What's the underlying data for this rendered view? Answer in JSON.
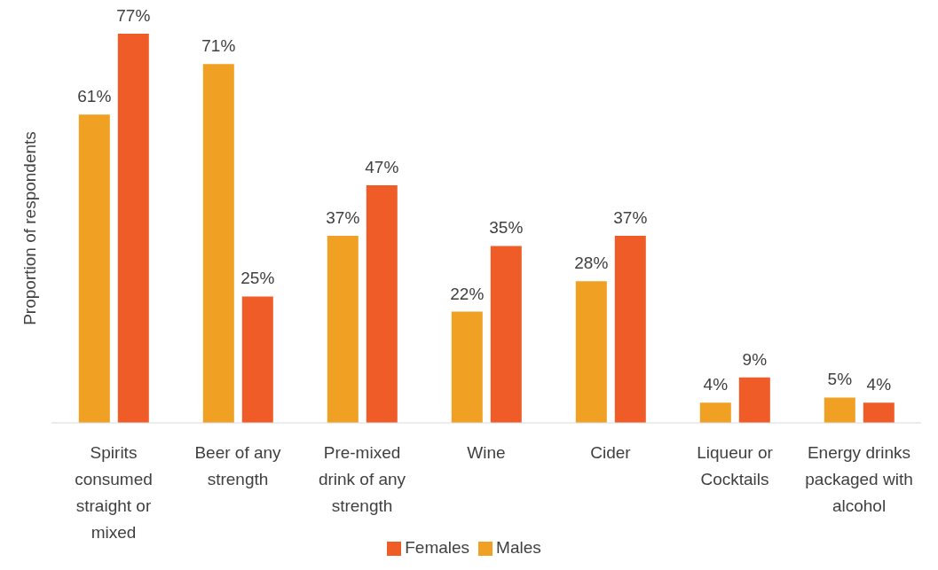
{
  "chart_data": {
    "type": "bar",
    "ylabel": "Proportion of respondents",
    "categories": [
      "Spirits consumed straight or mixed",
      "Beer of any strength",
      "Pre-mixed drink of any strength",
      "Wine",
      "Cider",
      "Liqueur or Cocktails",
      "Energy drinks packaged with alcohol"
    ],
    "series": [
      {
        "name": "Males",
        "color": "#f0a124",
        "values": [
          61,
          71,
          37,
          22,
          28,
          4,
          5
        ],
        "value_labels": [
          "61%",
          "71%",
          "37%",
          "22%",
          "28%",
          "4%",
          "5%"
        ]
      },
      {
        "name": "Females",
        "color": "#ef5c28",
        "values": [
          77,
          25,
          47,
          35,
          37,
          9,
          4
        ],
        "value_labels": [
          "77%",
          "25%",
          "47%",
          "35%",
          "37%",
          "9%",
          "4%"
        ]
      }
    ],
    "legend": "bottom"
  }
}
